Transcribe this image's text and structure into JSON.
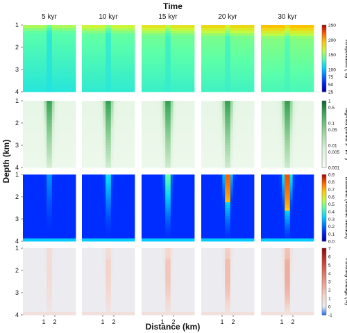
{
  "chart_data": {
    "type": "heatmap",
    "title": "Time",
    "xlabel": "Distance (km)",
    "ylabel": "Depth (km)",
    "x_ticks": [
      "1",
      "2"
    ],
    "y_ticks": [
      "1",
      "2",
      "3",
      "4"
    ],
    "columns": [
      "5 kyr",
      "10 kyr",
      "15 kyr",
      "20 kyr",
      "30 kyr"
    ],
    "rows": [
      {
        "variable": "temperature",
        "colorbar_label": "Temperature (°C)",
        "colormap": "jet",
        "colorbar_scale": "linear",
        "colorbar_range": [
          25,
          250
        ],
        "colorbar_ticks": [
          "250",
          "200",
          "150",
          "100",
          "75",
          "50",
          "25"
        ]
      },
      {
        "variable": "mg_flux",
        "colorbar_label": "Mg-flux (mmol s⁻¹m⁻²)",
        "colormap": "greens",
        "colorbar_scale": "log",
        "colorbar_range": [
          0.001,
          1
        ],
        "colorbar_ticks": [
          "1",
          "0.5",
          "0.1",
          "0.05",
          "0.01",
          "0.005",
          "0.001"
        ]
      },
      {
        "variable": "dolomite",
        "colorbar_label": "Dolomite (volume fraction)",
        "colormap": "jet",
        "colorbar_scale": "linear",
        "colorbar_range": [
          0,
          0.9
        ],
        "colorbar_ticks": [
          "0.9",
          "0.8",
          "0.7",
          "0.6",
          "0.5",
          "0.4",
          "0.3",
          "0.2",
          "0.1",
          "0.0"
        ]
      },
      {
        "variable": "porosity_change",
        "colorbar_label": "Porosity change (%)",
        "colormap": "blue-white-red",
        "colorbar_scale": "linear",
        "colorbar_range": [
          -1,
          7
        ],
        "colorbar_ticks": [
          "7",
          "6",
          "5",
          "4",
          "3",
          "2",
          "1",
          "0",
          "-1"
        ]
      }
    ],
    "grid": false
  }
}
